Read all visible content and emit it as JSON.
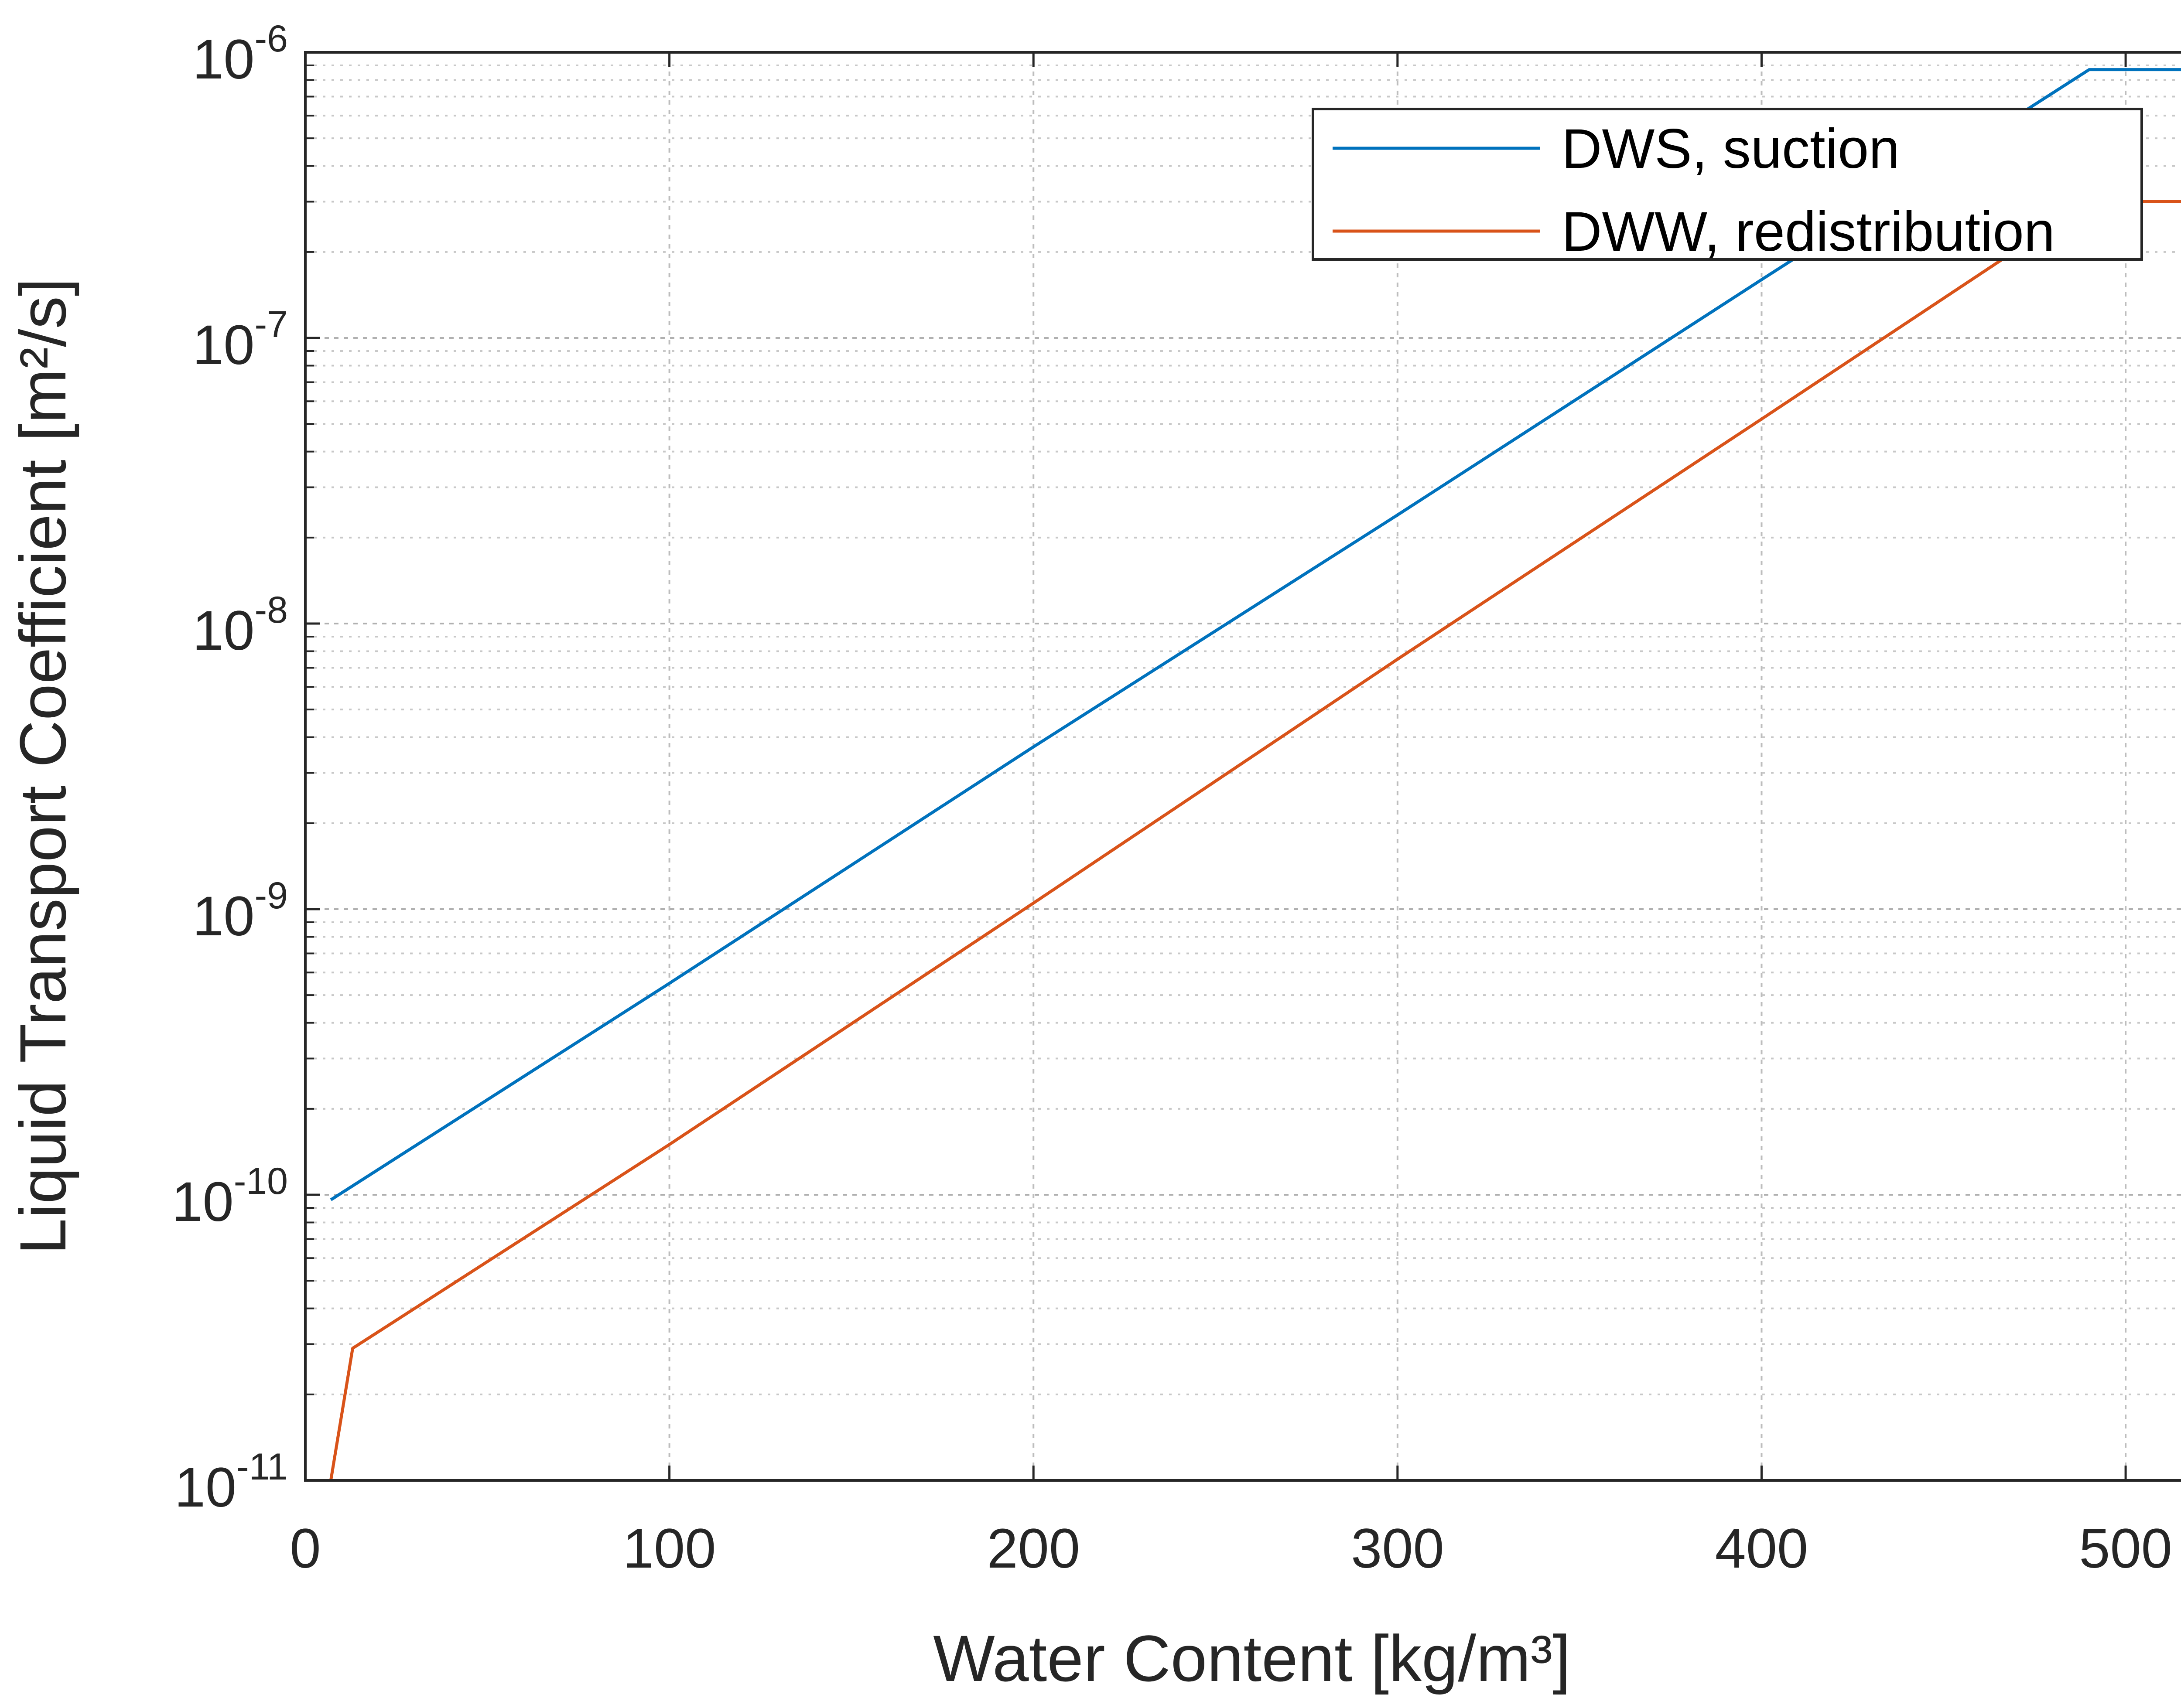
{
  "chart_data": {
    "type": "line",
    "title": "",
    "xlabel": "Water Content [kg/m³]",
    "ylabel": "Liquid Transport Coefficient [m²/s]",
    "xscale": "linear",
    "yscale": "log",
    "xlim": [
      0,
      520
    ],
    "ylim": [
      1e-11,
      1e-06
    ],
    "xticks": [
      0,
      100,
      200,
      300,
      400,
      500
    ],
    "xtick_labels": [
      "0",
      "100",
      "200",
      "300",
      "400",
      "500"
    ],
    "yticks": [
      1e-11,
      1e-10,
      1e-09,
      1e-08,
      1e-07,
      1e-06
    ],
    "ytick_labels": [
      {
        "base": "10",
        "exp": "-11"
      },
      {
        "base": "10",
        "exp": "-10"
      },
      {
        "base": "10",
        "exp": "-9"
      },
      {
        "base": "10",
        "exp": "-8"
      },
      {
        "base": "10",
        "exp": "-7"
      },
      {
        "base": "10",
        "exp": "-6"
      }
    ],
    "grid": true,
    "minor_grid": true,
    "legend_position": "top-right",
    "series": [
      {
        "name": "DWS, suction",
        "color": "#0072BD",
        "points": [
          [
            7,
            9.6e-11
          ],
          [
            100,
            5.5e-10
          ],
          [
            200,
            3.7e-09
          ],
          [
            300,
            2.4e-08
          ],
          [
            400,
            1.6e-07
          ],
          [
            490,
            8.7e-07
          ],
          [
            520,
            8.7e-07
          ]
        ]
      },
      {
        "name": "DWW, redistribution",
        "color": "#D95319",
        "points": [
          [
            7,
            1e-11
          ],
          [
            13,
            2.9e-11
          ],
          [
            100,
            1.5e-10
          ],
          [
            200,
            1.05e-09
          ],
          [
            300,
            7.5e-09
          ],
          [
            400,
            5.2e-08
          ],
          [
            490,
            3e-07
          ],
          [
            520,
            3e-07
          ]
        ]
      }
    ]
  }
}
